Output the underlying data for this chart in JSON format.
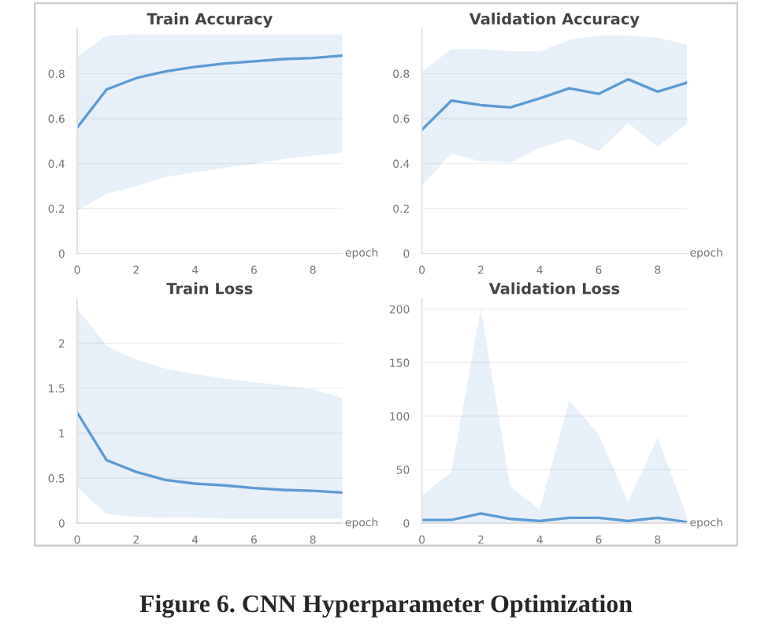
{
  "chart_data": [
    {
      "type": "line",
      "title": "Train Accuracy",
      "xlabel": "epoch",
      "x": [
        0,
        1,
        2,
        3,
        4,
        5,
        6,
        7,
        8,
        9
      ],
      "xlim": [
        0,
        9
      ],
      "xticks": [
        0,
        2,
        4,
        6,
        8
      ],
      "ylim": [
        0,
        1.0
      ],
      "yticks": [
        0,
        0.2,
        0.4,
        0.6,
        0.8
      ],
      "grid": "y",
      "series": [
        {
          "color": "#5b9bd5",
          "values": [
            0.56,
            0.73,
            0.78,
            0.81,
            0.83,
            0.845,
            0.855,
            0.865,
            0.87,
            0.88
          ],
          "lower": [
            0.19,
            0.265,
            0.3,
            0.34,
            0.36,
            0.38,
            0.4,
            0.42,
            0.435,
            0.45
          ],
          "upper": [
            0.875,
            0.97,
            0.975,
            0.975,
            0.975,
            0.975,
            0.975,
            0.975,
            0.975,
            0.975
          ]
        }
      ]
    },
    {
      "type": "line",
      "title": "Validation Accuracy",
      "xlabel": "epoch",
      "x": [
        0,
        1,
        2,
        3,
        4,
        5,
        6,
        7,
        8,
        9
      ],
      "xlim": [
        0,
        9
      ],
      "xticks": [
        0,
        2,
        4,
        6,
        8
      ],
      "ylim": [
        0,
        1.0
      ],
      "yticks": [
        0,
        0.2,
        0.4,
        0.6,
        0.8
      ],
      "grid": "y",
      "series": [
        {
          "color": "#5b9bd5",
          "values": [
            0.55,
            0.68,
            0.66,
            0.65,
            0.69,
            0.735,
            0.71,
            0.775,
            0.72,
            0.76
          ],
          "lower": [
            0.3,
            0.445,
            0.41,
            0.405,
            0.47,
            0.51,
            0.455,
            0.58,
            0.475,
            0.58
          ],
          "upper": [
            0.81,
            0.91,
            0.91,
            0.9,
            0.9,
            0.95,
            0.97,
            0.97,
            0.96,
            0.93
          ]
        }
      ]
    },
    {
      "type": "line",
      "title": "Train Loss",
      "xlabel": "epoch",
      "x": [
        0,
        1,
        2,
        3,
        4,
        5,
        6,
        7,
        8,
        9
      ],
      "xlim": [
        0,
        9
      ],
      "xticks": [
        0,
        2,
        4,
        6,
        8
      ],
      "ylim": [
        0,
        2.5
      ],
      "yticks": [
        0,
        0.5,
        1,
        1.5,
        2
      ],
      "grid": "y",
      "series": [
        {
          "color": "#5b9bd5",
          "values": [
            1.23,
            0.7,
            0.57,
            0.48,
            0.44,
            0.42,
            0.39,
            0.37,
            0.36,
            0.34
          ],
          "lower": [
            0.4,
            0.1,
            0.07,
            0.06,
            0.06,
            0.05,
            0.05,
            0.05,
            0.05,
            0.05
          ],
          "upper": [
            2.39,
            1.97,
            1.82,
            1.72,
            1.66,
            1.61,
            1.57,
            1.53,
            1.49,
            1.39
          ]
        }
      ]
    },
    {
      "type": "line",
      "title": "Validation Loss",
      "xlabel": "epoch",
      "x": [
        0,
        1,
        2,
        3,
        4,
        5,
        6,
        7,
        8,
        9
      ],
      "xlim": [
        0,
        9
      ],
      "xticks": [
        0,
        2,
        4,
        6,
        8
      ],
      "ylim": [
        0,
        210
      ],
      "yticks": [
        0,
        50,
        100,
        150,
        200
      ],
      "grid": "y",
      "annotations": [
        "Figure 6. CNN Hyperparameter Optimization"
      ],
      "series": [
        {
          "color": "#5b9bd5",
          "values": [
            3,
            3,
            9,
            4,
            2,
            5,
            5,
            2,
            5,
            1
          ],
          "lower": [
            0,
            0,
            0,
            0,
            0,
            0,
            0,
            0,
            0,
            0
          ],
          "upper": [
            26,
            48,
            201,
            34,
            13,
            115,
            83,
            20,
            80,
            6
          ]
        }
      ]
    }
  ]
}
